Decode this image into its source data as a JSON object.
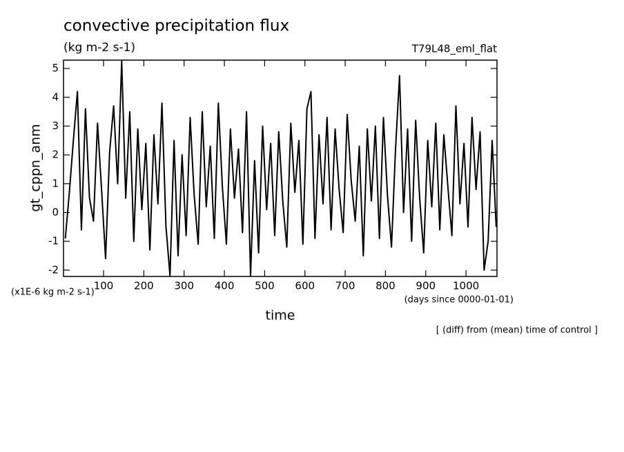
{
  "chart_data": {
    "type": "line",
    "title": "convective precipitation flux",
    "subtitle": "(kg m-2 s-1)",
    "run_label": "T79L48_eml_flat",
    "y_label": "gt_cppn_anm",
    "x_label": "time",
    "y_unit_label": "(x1E-6 kg m-2 s-1)",
    "x_unit_label": "(days since 0000-01-01)",
    "footnote": "[ (diff) from (mean) time of control ]",
    "color": "#000000",
    "xlim": [
      0.5,
      1077
    ],
    "ylim": [
      -2.22,
      5.29
    ],
    "xticks": [
      100,
      200,
      300,
      400,
      500,
      600,
      700,
      800,
      900,
      1000
    ],
    "yticks": [
      -2,
      -1,
      0,
      1,
      2,
      3,
      4,
      5
    ],
    "x": [
      5,
      15,
      25,
      35,
      45,
      55,
      65,
      75,
      85,
      95,
      105,
      115,
      125,
      135,
      145,
      155,
      165,
      175,
      185,
      195,
      205,
      215,
      225,
      235,
      245,
      255,
      265,
      275,
      285,
      295,
      305,
      315,
      325,
      335,
      345,
      355,
      365,
      375,
      385,
      395,
      405,
      415,
      425,
      435,
      445,
      455,
      465,
      475,
      485,
      495,
      505,
      515,
      525,
      535,
      545,
      555,
      565,
      575,
      585,
      595,
      605,
      615,
      625,
      635,
      645,
      655,
      665,
      675,
      685,
      695,
      705,
      715,
      725,
      735,
      745,
      755,
      765,
      775,
      785,
      795,
      805,
      815,
      825,
      835,
      845,
      855,
      865,
      875,
      885,
      895,
      905,
      915,
      925,
      935,
      945,
      955,
      965,
      975,
      985,
      995,
      1005,
      1015,
      1025,
      1035,
      1045,
      1055,
      1065,
      1075
    ],
    "values": [
      -0.9,
      0.7,
      2.5,
      4.2,
      -0.6,
      3.6,
      0.5,
      -0.3,
      3.1,
      0.8,
      -1.6,
      2.1,
      3.7,
      1.0,
      5.25,
      0.5,
      3.5,
      -1.0,
      2.9,
      0.1,
      2.4,
      -1.3,
      2.7,
      0.3,
      3.8,
      -0.5,
      -2.2,
      2.5,
      -1.5,
      2.0,
      -0.8,
      3.3,
      0.6,
      -1.1,
      3.5,
      0.2,
      2.3,
      -0.9,
      3.8,
      0.9,
      -1.1,
      2.9,
      0.5,
      2.2,
      -0.7,
      3.5,
      -2.2,
      1.8,
      -1.4,
      3.0,
      0.1,
      2.4,
      -0.8,
      2.8,
      0.4,
      -1.2,
      3.1,
      0.7,
      2.5,
      -1.1,
      3.6,
      4.2,
      -0.9,
      2.7,
      0.3,
      3.3,
      -0.6,
      2.9,
      0.8,
      -0.7,
      3.4,
      1.1,
      -0.3,
      2.3,
      -1.5,
      2.9,
      0.4,
      3.0,
      -0.9,
      3.3,
      0.6,
      -1.2,
      2.2,
      4.75,
      0.0,
      2.9,
      -1.0,
      3.2,
      0.5,
      -1.4,
      2.5,
      0.2,
      3.1,
      -0.6,
      2.7,
      0.9,
      -0.8,
      3.7,
      0.3,
      2.4,
      -0.5,
      3.3,
      0.8,
      2.8,
      -2.0,
      -1.0,
      2.5,
      -0.5
    ]
  }
}
